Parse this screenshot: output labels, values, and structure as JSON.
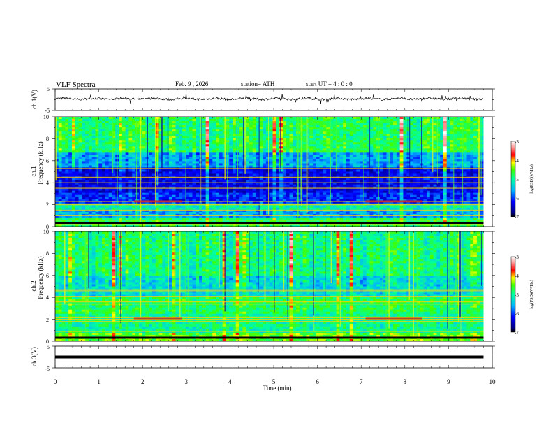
{
  "header": {
    "title": "VLF  Spectra",
    "date": "Feb. 9  , 2026",
    "station": "station= ATH",
    "start": "start  UT  =   4  : 0  : 0"
  },
  "colors": {
    "background": "#ffffff",
    "axis": "#000000",
    "waveform": "#000000"
  },
  "chart_data": [
    {
      "id": "ch1-waveform",
      "type": "line",
      "ylabel": "ch.1(V)",
      "ylim": [
        -5,
        5
      ],
      "yticks": [
        "5",
        "-5"
      ],
      "xlim": [
        0,
        10
      ],
      "x_end": 9.8,
      "baseline": 0.4,
      "noise_amplitude": 0.5,
      "grid": false
    },
    {
      "id": "ch1-spectrogram",
      "type": "heatmap",
      "ylabel": "ch.1",
      "ylabel2": "Frequency  (kHz)",
      "ylim": [
        0,
        10
      ],
      "yticks": [
        "0",
        "2",
        "4",
        "6",
        "8",
        "10"
      ],
      "xlim": [
        0,
        10
      ],
      "x_end": 9.8,
      "colorbar": {
        "range": [
          -7,
          -3
        ],
        "ticks": [
          "-3",
          "-4",
          "-5",
          "-6",
          "-7"
        ],
        "label": "log(PSD)(V²/Hz)"
      },
      "bands": [
        {
          "from": 0.0,
          "to": 0.7,
          "level": -4.8
        },
        {
          "from": 0.7,
          "to": 1.5,
          "level": -5.6
        },
        {
          "from": 1.5,
          "to": 2.2,
          "level": -5.1
        },
        {
          "from": 2.2,
          "to": 3.0,
          "level": -6.1
        },
        {
          "from": 3.0,
          "to": 5.3,
          "level": -6.3
        },
        {
          "from": 5.3,
          "to": 6.8,
          "level": -5.6
        },
        {
          "from": 6.8,
          "to": 10.0,
          "level": -4.8
        }
      ],
      "lines": [
        0.2,
        0.6,
        1.0,
        1.5,
        2.0,
        2.3,
        3.5,
        4.0,
        4.5,
        5.3
      ],
      "tones": [
        {
          "t0": 1.8,
          "t1": 2.9,
          "f": 2.3
        },
        {
          "t0": 7.1,
          "t1": 8.4,
          "f": 2.3
        }
      ]
    },
    {
      "id": "ch2-spectrogram",
      "type": "heatmap",
      "ylabel": "ch.2",
      "ylabel2": "Frequency  (kHz)",
      "ylim": [
        0,
        10
      ],
      "yticks": [
        "0",
        "2",
        "4",
        "6",
        "8",
        "10"
      ],
      "xlim": [
        0,
        10
      ],
      "x_end": 9.8,
      "colorbar": {
        "range": [
          -7,
          -3
        ],
        "ticks": [
          "-3",
          "-4",
          "-5",
          "-6",
          "-7"
        ],
        "label": "log(PSD)(V²/Hz)"
      },
      "bands": [
        {
          "from": 0.0,
          "to": 0.8,
          "level": -4.5
        },
        {
          "from": 0.8,
          "to": 2.5,
          "level": -5.0
        },
        {
          "from": 2.5,
          "to": 4.0,
          "level": -4.8
        },
        {
          "from": 4.0,
          "to": 6.0,
          "level": -5.3
        },
        {
          "from": 6.0,
          "to": 10.0,
          "level": -4.9
        }
      ],
      "lines": [
        0.3,
        0.9,
        1.8,
        2.0,
        2.2,
        3.4,
        3.6,
        4.1,
        4.6,
        4.7
      ],
      "tones": [
        {
          "t0": 1.8,
          "t1": 2.9,
          "f": 2.1
        },
        {
          "t0": 7.1,
          "t1": 8.4,
          "f": 2.1
        }
      ]
    },
    {
      "id": "ch3-waveform",
      "type": "line",
      "ylabel": "ch.3(V)",
      "ylim": [
        -5,
        5
      ],
      "yticks": [
        "5",
        "-5"
      ],
      "xlim": [
        0,
        10
      ],
      "x_end": 9.8,
      "baseline": 0.0,
      "noise_amplitude": 0.0,
      "xlabel": "Time  (min)",
      "xticks": [
        "0",
        "1",
        "2",
        "3",
        "4",
        "5",
        "6",
        "7",
        "8",
        "9",
        "10"
      ]
    }
  ]
}
